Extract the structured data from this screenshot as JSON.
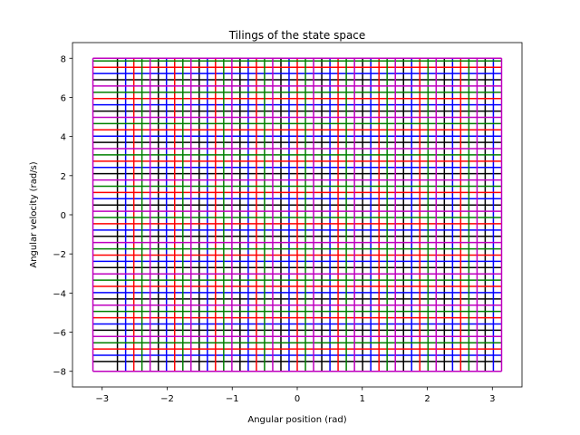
{
  "chart_data": {
    "type": "tiling",
    "title": "Tilings of the state space",
    "x_label": "Angular position (rad)",
    "y_label": "Angular velocity (rad/s)",
    "xlim": [
      -3.456,
      3.456
    ],
    "ylim": [
      -8.8,
      8.8
    ],
    "xticks": [
      {
        "value": -3,
        "label": "−3"
      },
      {
        "value": -2,
        "label": "−2"
      },
      {
        "value": -1,
        "label": "−1"
      },
      0,
      1,
      2,
      3
    ],
    "yticks": [
      {
        "value": -8,
        "label": "−8"
      },
      {
        "value": -6,
        "label": "−6"
      },
      {
        "value": -4,
        "label": "−4"
      },
      {
        "value": -2,
        "label": "−2"
      },
      0,
      2,
      4,
      6,
      8
    ],
    "xbounds": [
      -3.142,
      3.142
    ],
    "ybounds": [
      -8,
      8
    ],
    "series": [
      {
        "color": "#000000",
        "xlines": [
          -2.765,
          -2.136,
          -1.508,
          -0.88,
          -0.251,
          0.377,
          1.005,
          1.634,
          2.262,
          2.89
        ],
        "ylines": [
          -7.5,
          -5.9,
          -4.3,
          -2.7,
          -1.1,
          0.5,
          2.1,
          3.7,
          5.3,
          6.9
        ]
      },
      {
        "color": "#0000ff",
        "xlines": [
          -2.639,
          -2.011,
          -1.382,
          -0.754,
          -0.126,
          0.503,
          1.131,
          1.759,
          2.388,
          3.016
        ],
        "ylines": [
          -7.18,
          -5.58,
          -3.98,
          -2.38,
          -0.78,
          0.82,
          2.42,
          4.02,
          5.62,
          7.22
        ]
      },
      {
        "color": "#ff0000",
        "xlines": [
          -2.513,
          -1.885,
          -1.257,
          -0.628,
          0,
          0.628,
          1.257,
          1.885,
          2.513
        ],
        "ylines": [
          -6.86,
          -5.26,
          -3.66,
          -2.06,
          -0.46,
          1.14,
          2.74,
          4.34,
          5.94,
          7.54
        ]
      },
      {
        "color": "#008000",
        "xlines": [
          -2.388,
          -1.759,
          -1.131,
          -0.503,
          0.126,
          0.754,
          1.382,
          2.011,
          2.639
        ],
        "ylines": [
          -6.54,
          -4.94,
          -3.34,
          -1.74,
          -0.14,
          1.46,
          3.06,
          4.66,
          6.26,
          7.86
        ]
      },
      {
        "color": "#bf00bf",
        "xlines": [
          -3.142,
          -2.262,
          -1.634,
          -1.005,
          -0.377,
          0.251,
          0.88,
          1.508,
          2.136,
          2.765,
          3.142
        ],
        "ylines": [
          -8,
          -6.22,
          -4.62,
          -3.02,
          -1.42,
          0.18,
          1.78,
          3.38,
          4.98,
          6.58,
          8
        ]
      }
    ]
  }
}
